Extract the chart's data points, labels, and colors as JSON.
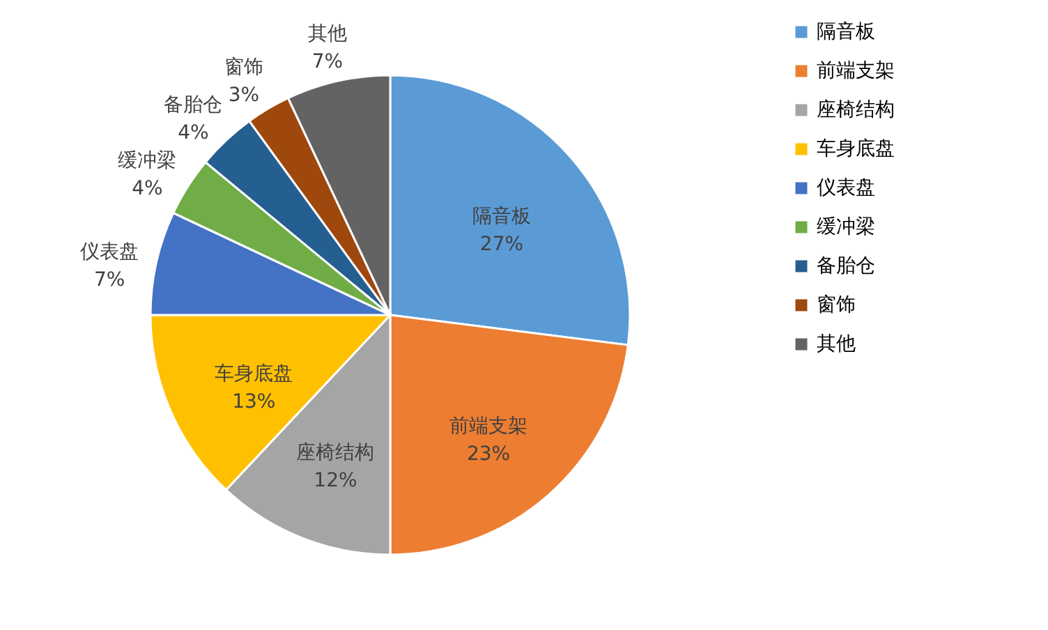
{
  "chart_data": {
    "type": "pie",
    "categories": [
      "隔音板",
      "前端支架",
      "座椅结构",
      "车身底盘",
      "仪表盘",
      "缓冲梁",
      "备胎仓",
      "窗饰",
      "其他"
    ],
    "values": [
      27,
      23,
      12,
      13,
      7,
      4,
      4,
      3,
      7
    ],
    "colors": [
      "#5b9bd5",
      "#ed7d31",
      "#a5a5a5",
      "#ffc000",
      "#4472c4",
      "#70ad47",
      "#255e91",
      "#9e480e",
      "#636363"
    ],
    "value_labels": [
      "27%",
      "23%",
      "12%",
      "13%",
      "7%",
      "4%",
      "4%",
      "3%",
      "7%"
    ],
    "legend": "right"
  }
}
